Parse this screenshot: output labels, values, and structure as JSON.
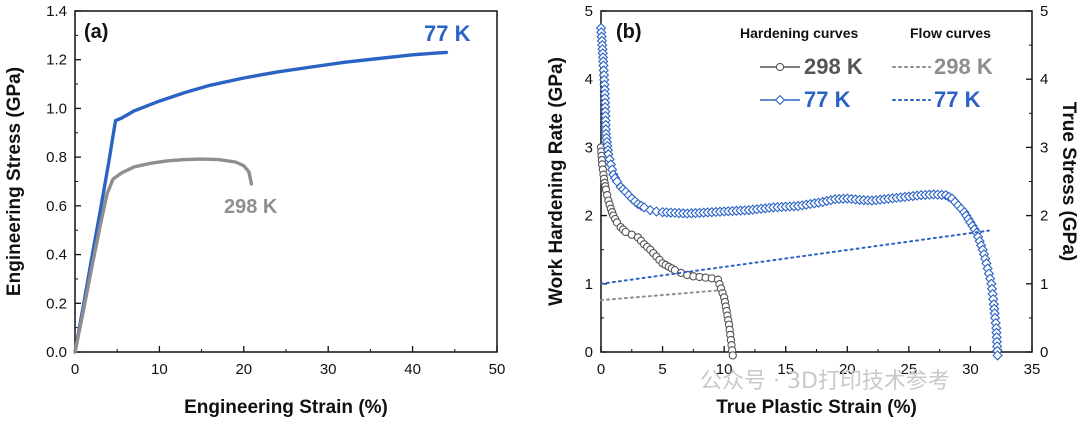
{
  "colors": {
    "k77": "#2b63c4",
    "k298": "#8e8e8e",
    "k298_dark": "#555555",
    "axis": "#111111"
  },
  "watermark": "公众号 · 3D打印技术参考",
  "chart_data": [
    {
      "type": "line",
      "panel_label": "(a)",
      "xlabel": "Engineering Strain (%)",
      "ylabel": "Engineering Stress (GPa)",
      "xlim": [
        0,
        50
      ],
      "ylim": [
        0,
        1.4
      ],
      "xticks": [
        "0",
        "10",
        "20",
        "30",
        "40",
        "50"
      ],
      "yticks": [
        "0.0",
        "0.2",
        "0.4",
        "0.6",
        "0.8",
        "1.0",
        "1.2",
        "1.4"
      ],
      "series": [
        {
          "name": "77 K",
          "label": "77 K",
          "color": "#2b63c4",
          "x": [
            0,
            1,
            2,
            3,
            4,
            4.8,
            5.5,
            7,
            10,
            13,
            16,
            20,
            24,
            28,
            32,
            36,
            40,
            43,
            44
          ],
          "y": [
            0,
            0.19,
            0.39,
            0.58,
            0.78,
            0.95,
            0.96,
            0.99,
            1.03,
            1.065,
            1.095,
            1.125,
            1.15,
            1.17,
            1.19,
            1.205,
            1.22,
            1.228,
            1.23
          ]
        },
        {
          "name": "298 K",
          "label": "298 K",
          "color": "#8e8e8e",
          "x": [
            0,
            1,
            2,
            3,
            3.8,
            4.5,
            5.5,
            7,
            9,
            11,
            13,
            15,
            17,
            19,
            20,
            20.6,
            20.9
          ],
          "y": [
            0,
            0.17,
            0.35,
            0.52,
            0.65,
            0.71,
            0.735,
            0.76,
            0.775,
            0.785,
            0.79,
            0.792,
            0.79,
            0.78,
            0.765,
            0.74,
            0.69
          ]
        }
      ]
    },
    {
      "type": "scatter",
      "panel_label": "(b)",
      "xlabel": "True Plastic Strain (%)",
      "ylabel": "Work Hardening Rate (GPa)",
      "y2label": "True Stress (GPa)",
      "xlim": [
        0,
        35
      ],
      "ylim": [
        0,
        5
      ],
      "y2lim": [
        0,
        5
      ],
      "xticks": [
        "0",
        "5",
        "10",
        "15",
        "20",
        "25",
        "30",
        "35"
      ],
      "yticks": [
        "0",
        "1",
        "2",
        "3",
        "4",
        "5"
      ],
      "legend": {
        "position": "top-right",
        "hardening_title": "Hardening curves",
        "flow_title": "Flow curves",
        "items": [
          {
            "hardening": "298 K",
            "flow": "298 K"
          },
          {
            "hardening": "77 K",
            "flow": "77 K"
          }
        ]
      },
      "series": [
        {
          "name": "298 K hardening",
          "marker": "circle",
          "color": "#555555",
          "x": [
            0.0,
            0.1,
            0.2,
            0.3,
            0.4,
            0.5,
            0.6,
            0.8,
            1.0,
            1.3,
            1.6,
            2.0,
            2.5,
            3.0,
            3.5,
            4.0,
            4.5,
            5.0,
            5.5,
            6.0,
            6.5,
            7.0,
            7.5,
            8.0,
            8.5,
            9.0,
            9.5,
            10.0,
            10.2,
            10.4,
            10.5,
            10.6,
            10.7
          ],
          "y": [
            3.0,
            2.75,
            2.6,
            2.48,
            2.38,
            2.3,
            2.22,
            2.1,
            2.0,
            1.9,
            1.83,
            1.76,
            1.72,
            1.68,
            1.58,
            1.5,
            1.4,
            1.3,
            1.25,
            1.2,
            1.16,
            1.13,
            1.11,
            1.1,
            1.09,
            1.08,
            1.06,
            0.8,
            0.6,
            0.4,
            0.25,
            0.1,
            -0.05
          ]
        },
        {
          "name": "77 K hardening",
          "marker": "diamond",
          "color": "#2b63c4",
          "x": [
            0.0,
            0.1,
            0.2,
            0.3,
            0.4,
            0.6,
            0.8,
            1.0,
            1.3,
            1.6,
            2.0,
            2.5,
            3.0,
            3.5,
            4.0,
            4.5,
            5.0,
            6.0,
            7.0,
            8.0,
            9.0,
            10.0,
            11.0,
            12.0,
            13.0,
            14.0,
            15.0,
            16.0,
            17.0,
            18.0,
            19.0,
            20.0,
            21.0,
            22.0,
            23.0,
            24.0,
            25.0,
            26.0,
            27.0,
            28.0,
            28.5,
            29.0,
            29.5,
            30.0,
            30.5,
            31.0,
            31.3,
            31.5,
            31.7,
            31.8,
            31.9,
            32.0,
            32.1,
            32.2
          ],
          "y": [
            4.75,
            4.5,
            4.2,
            3.85,
            3.2,
            2.9,
            2.75,
            2.6,
            2.5,
            2.42,
            2.35,
            2.25,
            2.17,
            2.12,
            2.08,
            2.06,
            2.05,
            2.04,
            2.03,
            2.04,
            2.05,
            2.06,
            2.07,
            2.08,
            2.1,
            2.12,
            2.13,
            2.14,
            2.17,
            2.2,
            2.24,
            2.25,
            2.23,
            2.22,
            2.24,
            2.26,
            2.28,
            2.3,
            2.31,
            2.3,
            2.25,
            2.15,
            2.05,
            1.9,
            1.75,
            1.5,
            1.3,
            1.15,
            1.0,
            0.85,
            0.7,
            0.5,
            0.35,
            -0.05
          ]
        },
        {
          "name": "298 K flow",
          "style": "dotted",
          "color": "#8e8e8e",
          "x": [
            0,
            10
          ],
          "y": [
            0.76,
            0.91
          ]
        },
        {
          "name": "77 K flow",
          "style": "dotted",
          "color": "#2b63c4",
          "x": [
            0,
            31.5
          ],
          "y": [
            1.0,
            1.78
          ]
        }
      ]
    }
  ]
}
